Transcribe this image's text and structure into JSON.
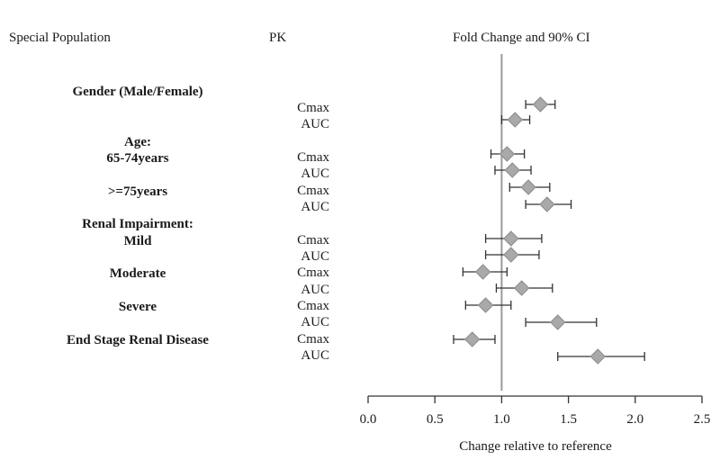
{
  "chart_data": {
    "type": "forest",
    "headers": {
      "population": "Special Population",
      "pk": "PK",
      "fold_change": "Fold Change and 90% CI"
    },
    "xlabel": "Change relative to reference",
    "xlim": [
      0.0,
      2.5
    ],
    "xticks": [
      "0.0",
      "0.5",
      "1.0",
      "1.5",
      "2.0",
      "2.5"
    ],
    "reference_line": 1.0,
    "groups": [
      {
        "label": "Gender (Male/Female)"
      },
      {
        "label": "Age:"
      },
      {
        "label": "65-74years"
      },
      {
        "label": ">=75years"
      },
      {
        "label": "Renal Impairment:"
      },
      {
        "label": "Mild"
      },
      {
        "label": "Moderate"
      },
      {
        "label": "Severe"
      },
      {
        "label": "End Stage Renal Disease"
      }
    ],
    "rows": [
      {
        "pk": "Cmax",
        "estimate": 1.29,
        "lower": 1.18,
        "upper": 1.4
      },
      {
        "pk": "AUC",
        "estimate": 1.1,
        "lower": 1.0,
        "upper": 1.21
      },
      {
        "pk": "Cmax",
        "estimate": 1.04,
        "lower": 0.92,
        "upper": 1.17
      },
      {
        "pk": "AUC",
        "estimate": 1.08,
        "lower": 0.95,
        "upper": 1.22
      },
      {
        "pk": "Cmax",
        "estimate": 1.2,
        "lower": 1.06,
        "upper": 1.36
      },
      {
        "pk": "AUC",
        "estimate": 1.34,
        "lower": 1.18,
        "upper": 1.52
      },
      {
        "pk": "Cmax",
        "estimate": 1.07,
        "lower": 0.88,
        "upper": 1.3
      },
      {
        "pk": "AUC",
        "estimate": 1.07,
        "lower": 0.88,
        "upper": 1.28
      },
      {
        "pk": "Cmax",
        "estimate": 0.86,
        "lower": 0.71,
        "upper": 1.04
      },
      {
        "pk": "AUC",
        "estimate": 1.15,
        "lower": 0.96,
        "upper": 1.38
      },
      {
        "pk": "Cmax",
        "estimate": 0.88,
        "lower": 0.73,
        "upper": 1.07
      },
      {
        "pk": "AUC",
        "estimate": 1.42,
        "lower": 1.18,
        "upper": 1.71
      },
      {
        "pk": "Cmax",
        "estimate": 0.78,
        "lower": 0.64,
        "upper": 0.95
      },
      {
        "pk": "AUC",
        "estimate": 1.72,
        "lower": 1.42,
        "upper": 2.07
      }
    ]
  }
}
